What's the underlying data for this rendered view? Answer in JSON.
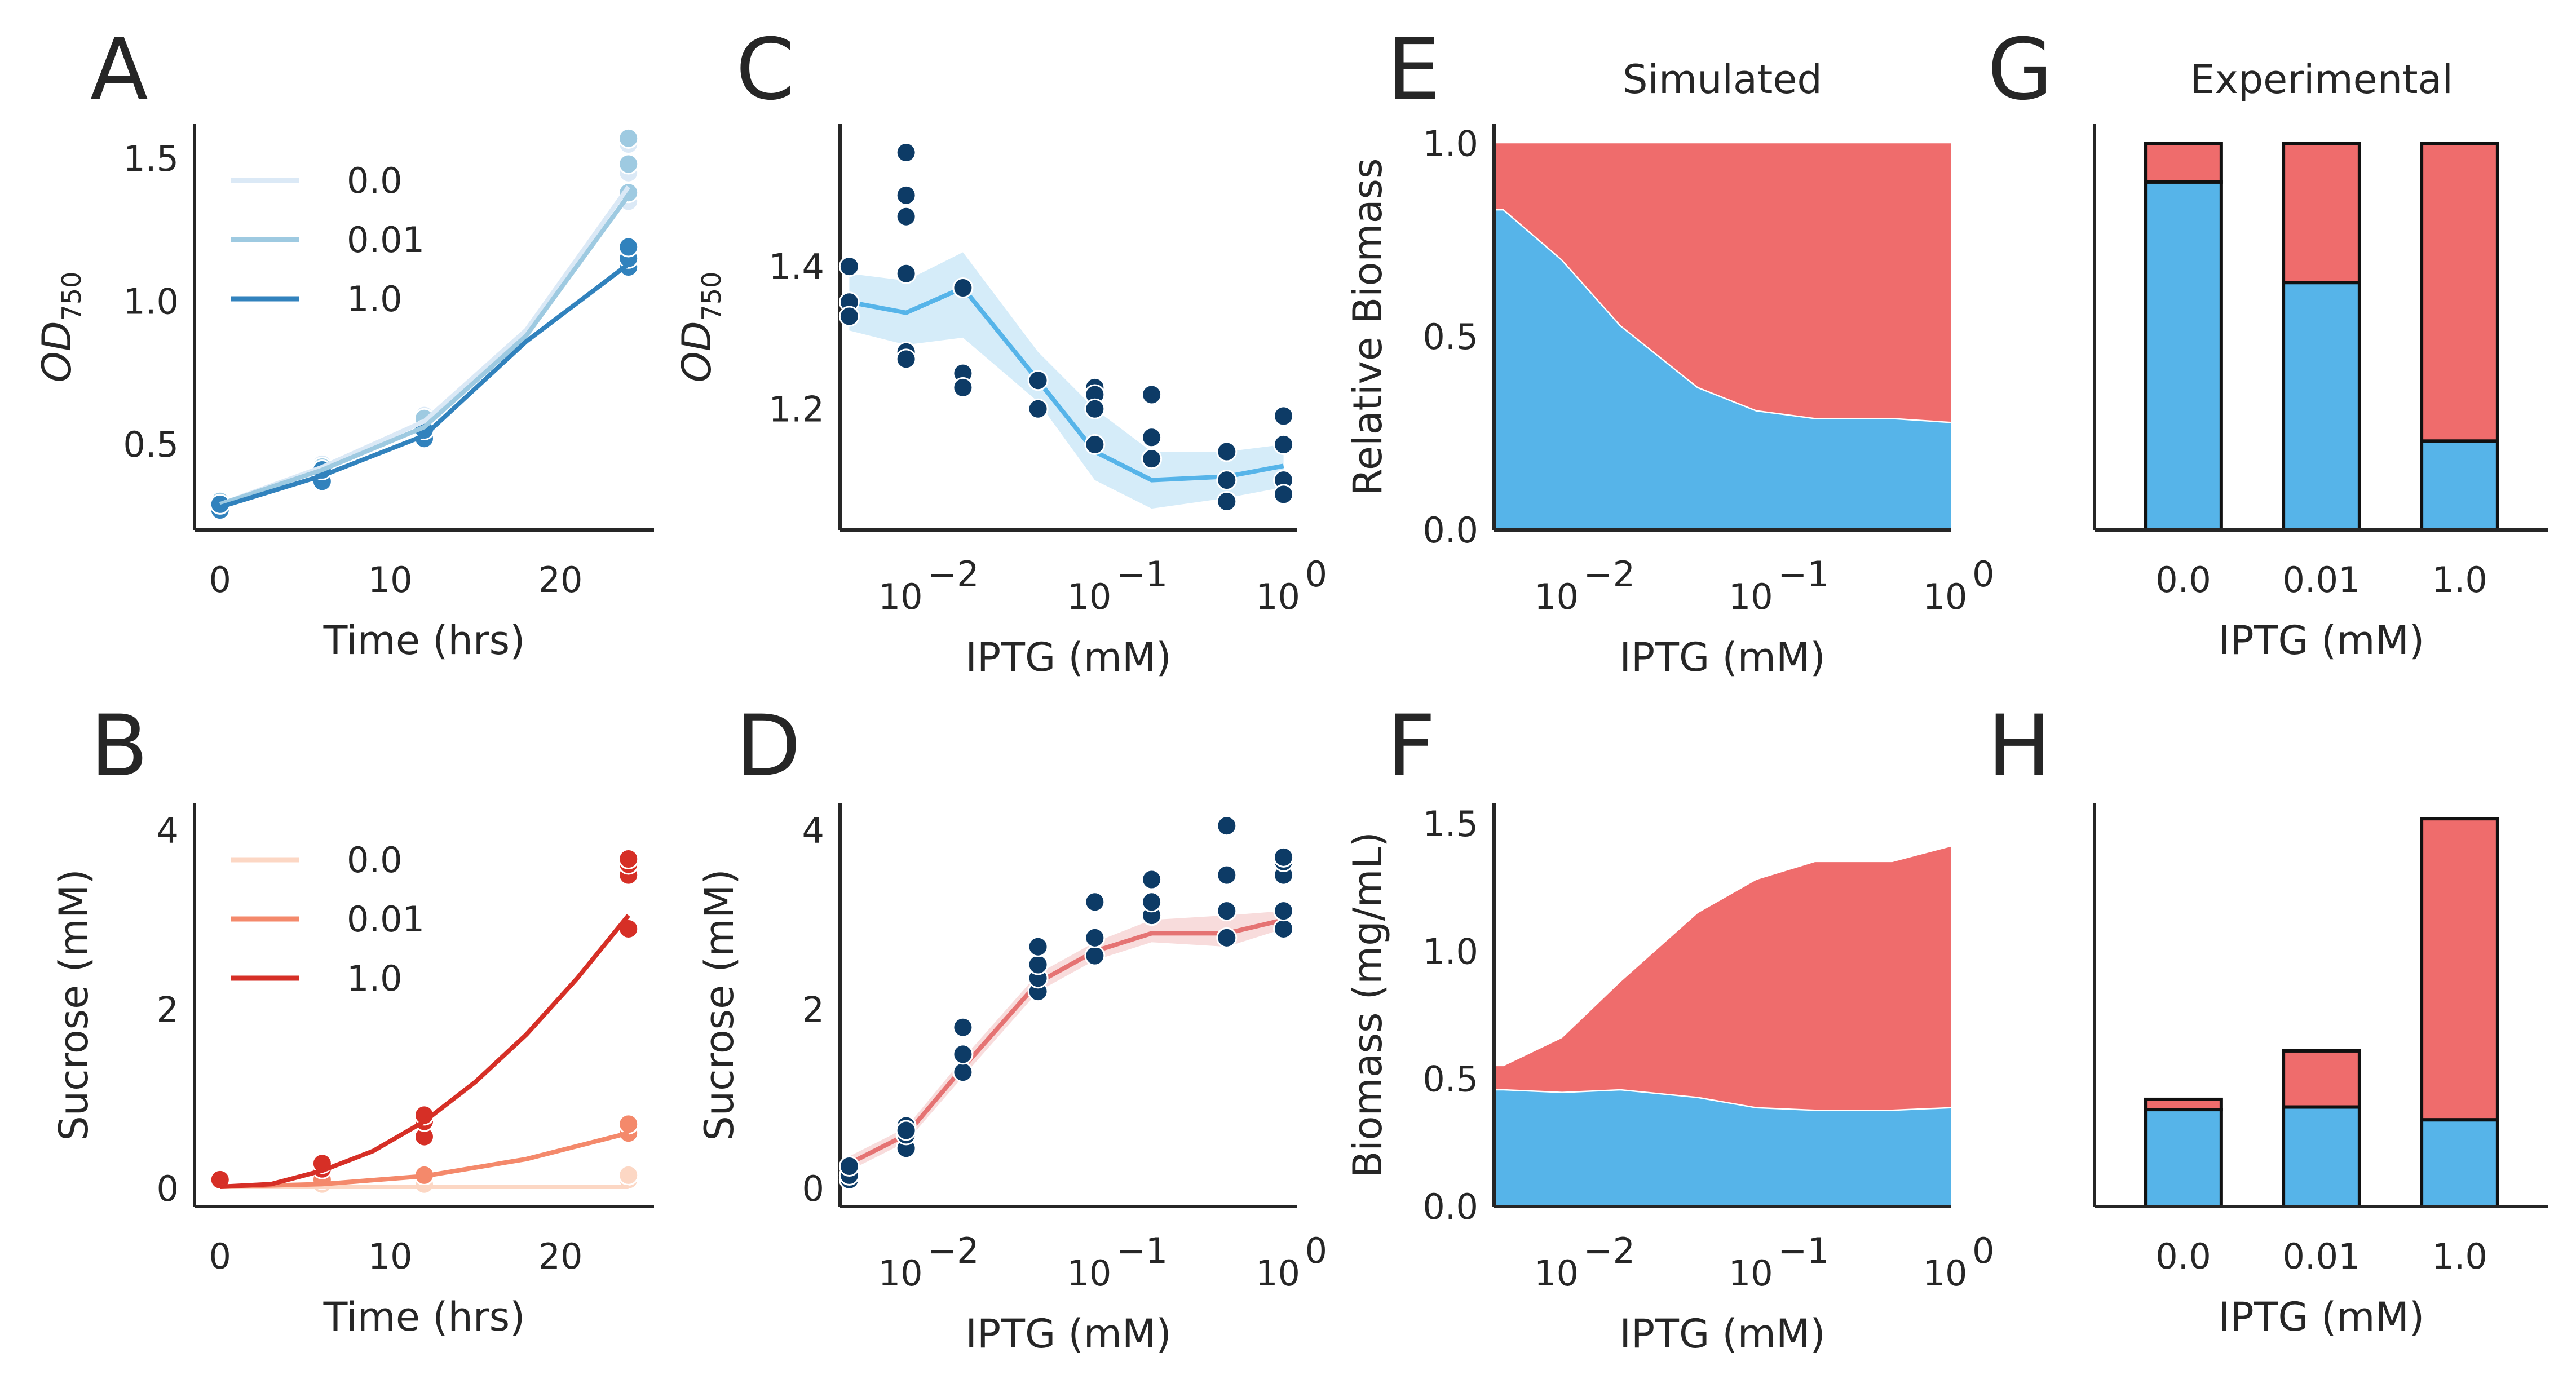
{
  "figure": {
    "colors": {
      "od_dark": "#0d3b66",
      "od_line": "#56b4e9",
      "blue_fill": "#56b4e9",
      "red_fill": "#ef6c6c",
      "sucrose_line": "#e57373",
      "axis": "#262626"
    }
  },
  "chart_data": [
    {
      "panel": "A",
      "type": "line",
      "xlabel": "Time (hrs)",
      "ylabel": "OD",
      "ylabel_sub": "750",
      "xlim": [
        -1.5,
        25.5
      ],
      "ylim": [
        0.2,
        1.62
      ],
      "xticks": [
        0,
        10,
        20
      ],
      "yticks": [
        0.5,
        1.0,
        1.5
      ],
      "legend_position": "upper-left",
      "series": [
        {
          "name": "0.0",
          "color": "#dbe9f6",
          "x": [
            0,
            6,
            12,
            18,
            24
          ],
          "y": [
            0.29,
            0.42,
            0.58,
            0.9,
            1.4
          ],
          "points": [
            [
              0,
              0.28
            ],
            [
              0,
              0.3
            ],
            [
              6,
              0.4
            ],
            [
              6,
              0.43
            ],
            [
              12,
              0.57
            ],
            [
              12,
              0.6
            ],
            [
              24,
              1.35
            ],
            [
              24,
              1.45
            ],
            [
              24,
              1.55
            ]
          ]
        },
        {
          "name": "0.01",
          "color": "#9ecae1",
          "x": [
            0,
            6,
            12,
            18,
            24
          ],
          "y": [
            0.29,
            0.41,
            0.56,
            0.88,
            1.37
          ],
          "points": [
            [
              0,
              0.27
            ],
            [
              0,
              0.3
            ],
            [
              6,
              0.39
            ],
            [
              6,
              0.42
            ],
            [
              12,
              0.55
            ],
            [
              12,
              0.59
            ],
            [
              24,
              1.38
            ],
            [
              24,
              1.48
            ],
            [
              24,
              1.57
            ]
          ]
        },
        {
          "name": "1.0",
          "color": "#3182bd",
          "x": [
            0,
            6,
            12,
            18,
            24
          ],
          "y": [
            0.28,
            0.39,
            0.53,
            0.86,
            1.13
          ],
          "points": [
            [
              0,
              0.27
            ],
            [
              0,
              0.29
            ],
            [
              6,
              0.37
            ],
            [
              6,
              0.41
            ],
            [
              12,
              0.52
            ],
            [
              12,
              0.55
            ],
            [
              24,
              1.12
            ],
            [
              24,
              1.15
            ],
            [
              24,
              1.19
            ]
          ]
        }
      ]
    },
    {
      "panel": "C",
      "type": "line",
      "xlabel": "IPTG (mM)",
      "ylabel": "OD",
      "ylabel_sub": "750",
      "xscale": "log",
      "xlim_log10": [
        -2.35,
        0.07
      ],
      "ylim": [
        1.03,
        1.6
      ],
      "xticks": [
        0.01,
        0.1,
        1
      ],
      "xtick_labels": [
        "10",
        "10",
        "10"
      ],
      "xtick_exponents": [
        "−2",
        "−1",
        "0"
      ],
      "yticks": [
        1.2,
        1.4
      ],
      "mean_line": {
        "x": [
          0.005,
          0.01,
          0.02,
          0.05,
          0.1,
          0.2,
          0.5,
          1.0
        ],
        "y": [
          1.35,
          1.335,
          1.37,
          1.24,
          1.14,
          1.1,
          1.105,
          1.12
        ]
      },
      "band": {
        "lower": [
          1.31,
          1.29,
          1.3,
          1.21,
          1.1,
          1.06,
          1.075,
          1.09
        ],
        "upper": [
          1.39,
          1.38,
          1.42,
          1.28,
          1.2,
          1.14,
          1.14,
          1.15
        ]
      },
      "points": {
        "x": [
          0.005,
          0.005,
          0.005,
          0.01,
          0.01,
          0.01,
          0.01,
          0.01,
          0.01,
          0.02,
          0.02,
          0.02,
          0.05,
          0.05,
          0.1,
          0.1,
          0.1,
          0.1,
          0.2,
          0.2,
          0.2,
          0.5,
          0.5,
          0.5,
          1.0,
          1.0,
          1.0,
          1.0
        ],
        "y": [
          1.4,
          1.35,
          1.33,
          1.56,
          1.5,
          1.47,
          1.39,
          1.28,
          1.27,
          1.37,
          1.25,
          1.23,
          1.24,
          1.2,
          1.23,
          1.22,
          1.2,
          1.15,
          1.22,
          1.16,
          1.13,
          1.14,
          1.1,
          1.07,
          1.19,
          1.15,
          1.1,
          1.08
        ]
      }
    },
    {
      "panel": "E",
      "type": "area",
      "title": "Simulated",
      "xlabel": "IPTG (mM)",
      "ylabel": "Relative Biomass",
      "xscale": "log",
      "xlim_log10": [
        -2.35,
        0.0
      ],
      "ylim": [
        0,
        1.05
      ],
      "xticks": [
        0.01,
        0.1,
        1
      ],
      "xtick_labels": [
        "10",
        "10",
        "10"
      ],
      "xtick_exponents": [
        "−2",
        "−1",
        "0"
      ],
      "yticks": [
        0.0,
        0.5,
        1.0
      ],
      "ytick_labels": [
        "0.0",
        "0.5",
        "1.0"
      ],
      "x": [
        0.0045,
        0.005,
        0.01,
        0.02,
        0.05,
        0.1,
        0.2,
        0.5,
        1.0
      ],
      "series": [
        {
          "color": "#56b4e9",
          "values": [
            0.83,
            0.83,
            0.7,
            0.53,
            0.37,
            0.31,
            0.29,
            0.29,
            0.28
          ]
        },
        {
          "color": "#ef6c6c",
          "values": [
            0.17,
            0.17,
            0.3,
            0.47,
            0.63,
            0.69,
            0.71,
            0.71,
            0.72
          ]
        }
      ]
    },
    {
      "panel": "G",
      "type": "bar",
      "title": "Experimental",
      "xlabel": "IPTG (mM)",
      "ylim": [
        0,
        1.05
      ],
      "categories": [
        "0.0",
        "0.01",
        "1.0"
      ],
      "series": [
        {
          "color": "#56b4e9",
          "values": [
            0.9,
            0.64,
            0.23
          ]
        },
        {
          "color": "#ef6c6c",
          "values": [
            0.1,
            0.36,
            0.77
          ]
        }
      ]
    },
    {
      "panel": "B",
      "type": "line",
      "xlabel": "Time (hrs)",
      "ylabel": "Sucrose (mM)",
      "xlim": [
        -1.5,
        25.5
      ],
      "ylim": [
        -0.2,
        4.3
      ],
      "xticks": [
        0,
        10,
        20
      ],
      "yticks": [
        0,
        2,
        4
      ],
      "legend_position": "upper-left",
      "series": [
        {
          "name": "0.0",
          "color": "#fcd7c4",
          "x": [
            0,
            6,
            12,
            18,
            24
          ],
          "y": [
            0.02,
            0.02,
            0.02,
            0.02,
            0.02
          ],
          "points": [
            [
              0,
              0.1
            ],
            [
              6,
              0.05
            ],
            [
              12,
              0.05
            ],
            [
              24,
              0.1
            ],
            [
              24,
              0.15
            ]
          ]
        },
        {
          "name": "0.01",
          "color": "#f4896b",
          "x": [
            0,
            6,
            12,
            18,
            24
          ],
          "y": [
            0.02,
            0.05,
            0.14,
            0.33,
            0.62
          ],
          "points": [
            [
              0,
              0.1
            ],
            [
              6,
              0.1
            ],
            [
              12,
              0.15
            ],
            [
              24,
              0.62
            ],
            [
              24,
              0.72
            ]
          ]
        },
        {
          "name": "1.0",
          "color": "#d62f26",
          "x": [
            0,
            3,
            6,
            9,
            12,
            15,
            18,
            21,
            24
          ],
          "y": [
            0.02,
            0.05,
            0.2,
            0.42,
            0.75,
            1.19,
            1.72,
            2.35,
            3.05
          ],
          "points": [
            [
              0,
              0.1
            ],
            [
              6,
              0.22
            ],
            [
              6,
              0.28
            ],
            [
              12,
              0.58
            ],
            [
              12,
              0.75
            ],
            [
              12,
              0.82
            ],
            [
              24,
              2.9
            ],
            [
              24,
              3.5
            ],
            [
              24,
              3.62
            ],
            [
              24,
              3.68
            ]
          ]
        }
      ]
    },
    {
      "panel": "D",
      "type": "line",
      "xlabel": "IPTG (mM)",
      "ylabel": "Sucrose (mM)",
      "xscale": "log",
      "xlim_log10": [
        -2.35,
        0.07
      ],
      "ylim": [
        -0.2,
        4.3
      ],
      "xticks": [
        0.01,
        0.1,
        1
      ],
      "xtick_labels": [
        "10",
        "10",
        "10"
      ],
      "xtick_exponents": [
        "−2",
        "−1",
        "0"
      ],
      "yticks": [
        0,
        2,
        4
      ],
      "mean_line": {
        "x": [
          0.005,
          0.01,
          0.02,
          0.05,
          0.1,
          0.2,
          0.5,
          1.0
        ],
        "y": [
          0.28,
          0.6,
          1.35,
          2.3,
          2.65,
          2.85,
          2.85,
          3.0
        ]
      },
      "band": {
        "lower": [
          0.2,
          0.52,
          1.25,
          2.2,
          2.55,
          2.75,
          2.7,
          2.9
        ],
        "upper": [
          0.36,
          0.68,
          1.45,
          2.4,
          2.75,
          3.0,
          3.05,
          3.1
        ]
      },
      "points": {
        "x": [
          0.005,
          0.005,
          0.005,
          0.01,
          0.01,
          0.01,
          0.01,
          0.02,
          0.02,
          0.02,
          0.05,
          0.05,
          0.05,
          0.05,
          0.1,
          0.1,
          0.1,
          0.2,
          0.2,
          0.2,
          0.5,
          0.5,
          0.5,
          0.5,
          1.0,
          1.0,
          1.0,
          1.0,
          1.0
        ],
        "y": [
          0.1,
          0.15,
          0.25,
          0.45,
          0.6,
          0.7,
          0.65,
          1.3,
          1.5,
          1.8,
          2.2,
          2.35,
          2.5,
          2.7,
          2.6,
          2.8,
          3.2,
          3.05,
          3.2,
          3.45,
          2.8,
          3.1,
          3.5,
          4.05,
          2.9,
          3.1,
          3.5,
          3.65,
          3.7
        ]
      }
    },
    {
      "panel": "F",
      "type": "area",
      "xlabel": "IPTG (mM)",
      "ylabel": "Biomass (mg/mL)",
      "xscale": "log",
      "xlim_log10": [
        -2.35,
        0.0
      ],
      "ylim": [
        0,
        1.58
      ],
      "xticks": [
        0.01,
        0.1,
        1
      ],
      "xtick_labels": [
        "10",
        "10",
        "10"
      ],
      "xtick_exponents": [
        "−2",
        "−1",
        "0"
      ],
      "yticks": [
        0.0,
        0.5,
        1.0,
        1.5
      ],
      "ytick_labels": [
        "0.0",
        "0.5",
        "1.0",
        "1.5"
      ],
      "x": [
        0.0045,
        0.005,
        0.01,
        0.02,
        0.05,
        0.1,
        0.2,
        0.5,
        1.0
      ],
      "series": [
        {
          "color": "#56b4e9",
          "values": [
            0.46,
            0.46,
            0.45,
            0.46,
            0.43,
            0.39,
            0.38,
            0.38,
            0.39
          ]
        },
        {
          "color": "#ef6c6c",
          "values": [
            0.09,
            0.09,
            0.21,
            0.42,
            0.72,
            0.89,
            0.97,
            0.97,
            1.02
          ]
        }
      ]
    },
    {
      "panel": "H",
      "type": "bar",
      "xlabel": "IPTG (mM)",
      "ylim": [
        0,
        1.58
      ],
      "categories": [
        "0.0",
        "0.01",
        "1.0"
      ],
      "series": [
        {
          "color": "#56b4e9",
          "values": [
            0.38,
            0.39,
            0.34
          ]
        },
        {
          "color": "#ef6c6c",
          "values": [
            0.04,
            0.22,
            1.18
          ]
        }
      ]
    }
  ]
}
